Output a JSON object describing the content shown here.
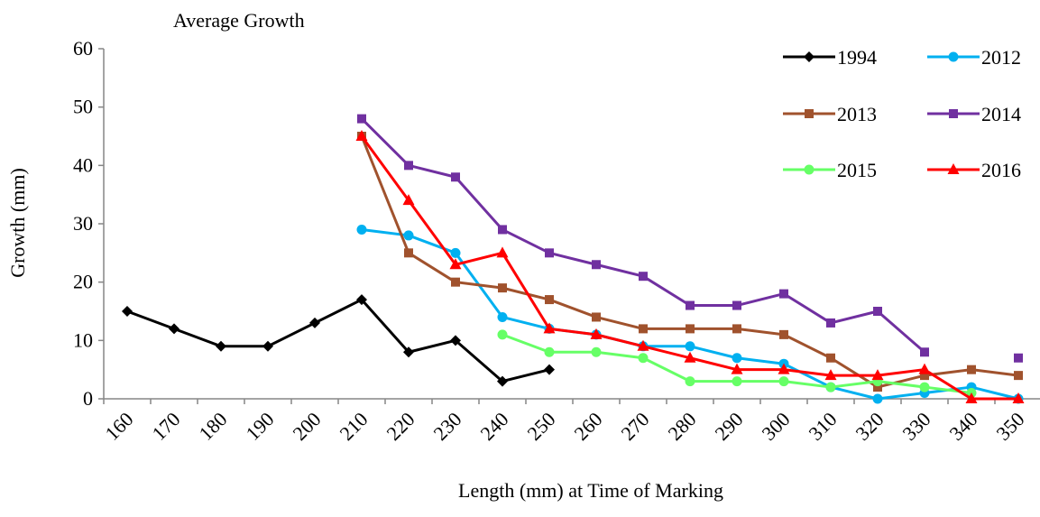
{
  "chart_data": {
    "type": "line",
    "title": "Average Growth",
    "xlabel": "Length (mm) at Time of Marking",
    "ylabel": "Growth (mm)",
    "categories": [
      "160",
      "170",
      "180",
      "190",
      "200",
      "210",
      "220",
      "230",
      "240",
      "250",
      "260",
      "270",
      "280",
      "290",
      "300",
      "310",
      "320",
      "330",
      "340",
      "350"
    ],
    "ylim": [
      0,
      60
    ],
    "yticks": [
      "0",
      "10",
      "20",
      "30",
      "40",
      "50",
      "60"
    ],
    "grid": false,
    "legend_position": "top-right",
    "series": [
      {
        "name": "1994",
        "color": "#000000",
        "marker": "diamond",
        "values": [
          15,
          12,
          9,
          9,
          13,
          17,
          8,
          10,
          3,
          5,
          null,
          null,
          null,
          null,
          null,
          null,
          null,
          null,
          null,
          null
        ]
      },
      {
        "name": "2012",
        "color": "#00B0F0",
        "marker": "circle",
        "values": [
          null,
          null,
          null,
          null,
          null,
          29,
          28,
          25,
          14,
          12,
          11,
          9,
          9,
          7,
          6,
          2,
          0,
          1,
          2,
          0
        ]
      },
      {
        "name": "2013",
        "color": "#A0522D",
        "marker": "square",
        "values": [
          null,
          null,
          null,
          null,
          null,
          45,
          25,
          20,
          19,
          17,
          14,
          12,
          12,
          12,
          11,
          7,
          2,
          4,
          5,
          4
        ]
      },
      {
        "name": "2014",
        "color": "#7030A0",
        "marker": "square",
        "values": [
          null,
          null,
          null,
          null,
          null,
          48,
          40,
          38,
          29,
          25,
          23,
          21,
          16,
          16,
          18,
          13,
          15,
          8,
          null,
          7
        ]
      },
      {
        "name": "2015",
        "color": "#66FF66",
        "marker": "circle",
        "values": [
          null,
          null,
          null,
          null,
          null,
          null,
          null,
          null,
          11,
          8,
          8,
          7,
          3,
          3,
          3,
          2,
          3,
          2,
          1,
          null
        ]
      },
      {
        "name": "2016",
        "color": "#FF0000",
        "marker": "triangle",
        "values": [
          null,
          null,
          null,
          null,
          null,
          45,
          34,
          23,
          25,
          12,
          11,
          9,
          7,
          5,
          5,
          4,
          4,
          5,
          0,
          0
        ]
      }
    ]
  }
}
